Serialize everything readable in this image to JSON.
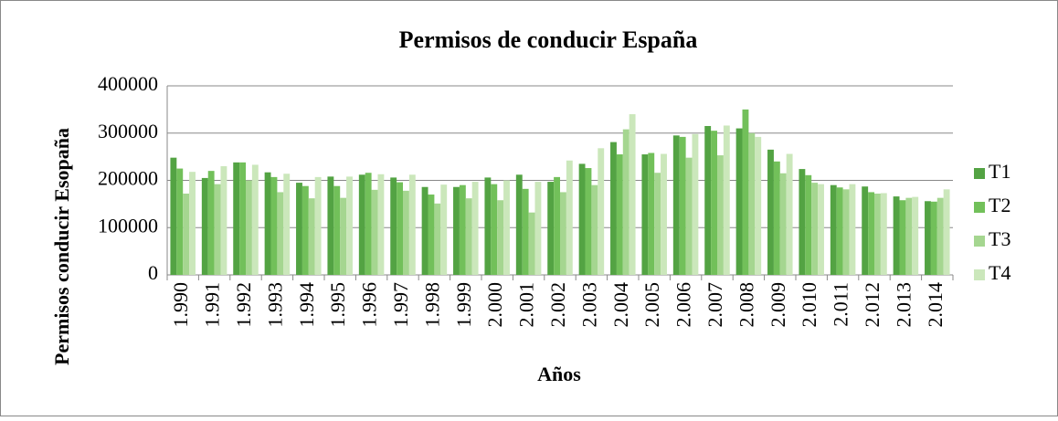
{
  "chart_data": {
    "type": "bar",
    "title": "Permisos de conducir España",
    "x_label": "Años",
    "y_label": "Permisos conducir Esopaña",
    "categories": [
      "1.990",
      "1.991",
      "1.992",
      "1.993",
      "1.994",
      "1.995",
      "1.996",
      "1.997",
      "1.998",
      "1.999",
      "2.000",
      "2.001",
      "2.002",
      "2.003",
      "2.004",
      "2.005",
      "2.006",
      "2.007",
      "2.008",
      "2.009",
      "2.010",
      "2.011",
      "2.012",
      "2.013",
      "2.014"
    ],
    "series": [
      {
        "name": "T1",
        "color": "#53a343",
        "values": [
          248000,
          205000,
          238000,
          217000,
          195000,
          208000,
          212000,
          206000,
          186000,
          186000,
          206000,
          212000,
          197000,
          235000,
          281000,
          255000,
          295000,
          315000,
          310000,
          265000,
          224000,
          190000,
          187000,
          166000,
          156000
        ]
      },
      {
        "name": "T2",
        "color": "#72c05a",
        "values": [
          225000,
          220000,
          238000,
          207000,
          188000,
          188000,
          216000,
          196000,
          170000,
          190000,
          192000,
          182000,
          207000,
          226000,
          255000,
          258000,
          292000,
          305000,
          350000,
          240000,
          211000,
          185000,
          175000,
          158000,
          155000
        ]
      },
      {
        "name": "T3",
        "color": "#a5d690",
        "values": [
          172000,
          192000,
          200000,
          175000,
          162000,
          163000,
          180000,
          178000,
          151000,
          162000,
          158000,
          132000,
          175000,
          190000,
          308000,
          216000,
          248000,
          253000,
          300000,
          215000,
          195000,
          181000,
          172000,
          163000,
          163000
        ]
      },
      {
        "name": "T4",
        "color": "#cbe7bb",
        "values": [
          218000,
          230000,
          233000,
          214000,
          207000,
          208000,
          213000,
          212000,
          191000,
          197000,
          200000,
          197000,
          242000,
          268000,
          340000,
          256000,
          298000,
          316000,
          292000,
          256000,
          192000,
          192000,
          173000,
          165000,
          181000
        ]
      }
    ],
    "ylim": [
      0,
      400000
    ],
    "yticks": [
      0,
      100000,
      200000,
      300000,
      400000
    ],
    "grid": true,
    "legend": "right"
  }
}
